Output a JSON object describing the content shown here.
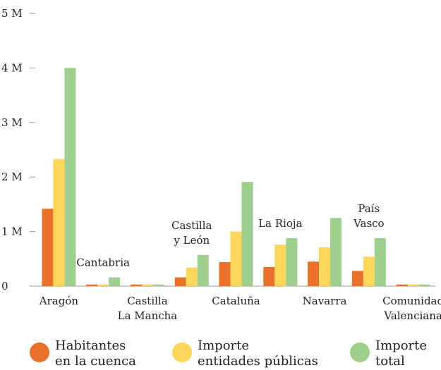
{
  "chart_data": {
    "type": "bar",
    "categories": [
      "Aragón",
      "Cantabria",
      "Castilla\nLa Mancha",
      "Castilla\ny León",
      "Cataluña",
      "La Rioja",
      "Navarra",
      "País\nVasco",
      "Comunidad\nValenciana"
    ],
    "series": [
      {
        "name": "Habitantes\nen la cuenca",
        "color": "#e8722c",
        "values": [
          1420000,
          30000,
          30000,
          160000,
          440000,
          350000,
          450000,
          280000,
          30000
        ]
      },
      {
        "name": "Importe\nentidades públicas",
        "color": "#fdd65a",
        "values": [
          2330000,
          30000,
          30000,
          340000,
          1000000,
          760000,
          710000,
          540000,
          30000
        ]
      },
      {
        "name": "Importe\ntotal",
        "color": "#9fcf8f",
        "values": [
          4000000,
          160000,
          30000,
          570000,
          1910000,
          880000,
          1250000,
          880000,
          30000
        ]
      }
    ],
    "ylim": [
      0,
      5000000
    ],
    "yticks": [
      {
        "value": 0,
        "label": "0"
      },
      {
        "value": 1000000,
        "label": "1 M"
      },
      {
        "value": 2000000,
        "label": "2 M"
      },
      {
        "value": 3000000,
        "label": "3 M"
      },
      {
        "value": 4000000,
        "label": "4 M"
      },
      {
        "value": 5000000,
        "label": "5 M"
      }
    ],
    "legend": "bottom"
  }
}
